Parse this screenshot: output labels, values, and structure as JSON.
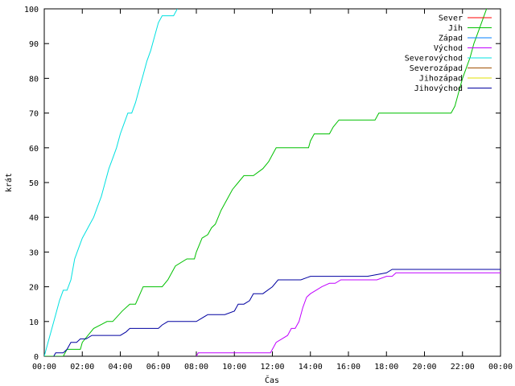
{
  "chart_data": {
    "type": "line",
    "title": "",
    "xlabel": "Čas",
    "ylabel": "krát",
    "xlim": [
      0,
      24
    ],
    "ylim": [
      0,
      100
    ],
    "x_ticks": [
      {
        "value": 0,
        "label": "00:00"
      },
      {
        "value": 2,
        "label": "02:00"
      },
      {
        "value": 4,
        "label": "04:00"
      },
      {
        "value": 6,
        "label": "06:00"
      },
      {
        "value": 8,
        "label": "08:00"
      },
      {
        "value": 10,
        "label": "10:00"
      },
      {
        "value": 12,
        "label": "12:00"
      },
      {
        "value": 14,
        "label": "14:00"
      },
      {
        "value": 16,
        "label": "16:00"
      },
      {
        "value": 18,
        "label": "18:00"
      },
      {
        "value": 20,
        "label": "20:00"
      },
      {
        "value": 22,
        "label": "22:00"
      },
      {
        "value": 24,
        "label": "00:00"
      }
    ],
    "y_ticks": [
      0,
      10,
      20,
      30,
      40,
      50,
      60,
      70,
      80,
      90,
      100
    ],
    "legend_position": "top-right",
    "grid": false,
    "series": [
      {
        "name": "Sever",
        "color": "#ff0000",
        "x": [],
        "y": []
      },
      {
        "name": "Jih",
        "color": "#00c000",
        "x": [
          0,
          1.0,
          1.2,
          1.9,
          2.0,
          2.3,
          2.6,
          3.3,
          3.6,
          4.1,
          4.5,
          4.8,
          5.2,
          5.8,
          6.2,
          6.5,
          6.9,
          7.5,
          7.6,
          7.9,
          8.0,
          8.3,
          8.6,
          8.8,
          9.0,
          9.3,
          9.6,
          9.9,
          10.2,
          10.5,
          10.8,
          11.0,
          11.5,
          11.8,
          12.0,
          12.2,
          13.0,
          13.9,
          14.0,
          14.2,
          14.5,
          15.0,
          15.2,
          15.5,
          15.8,
          16.5,
          17.0,
          17.4,
          17.6,
          18.0,
          19.0,
          20.0,
          20.5,
          21.0,
          21.4,
          21.6,
          21.8,
          22.0,
          22.2,
          22.4,
          22.6,
          22.8,
          23.0,
          23.2,
          23.4
        ],
        "y": [
          0,
          0,
          2,
          2,
          4,
          6,
          8,
          10,
          10,
          13,
          15,
          15,
          20,
          20,
          20,
          22,
          26,
          28,
          28,
          28,
          30,
          34,
          35,
          37,
          38,
          42,
          45,
          48,
          50,
          52,
          52,
          52,
          54,
          56,
          58,
          60,
          60,
          60,
          62,
          64,
          64,
          64,
          66,
          68,
          68,
          68,
          68,
          68,
          70,
          70,
          70,
          70,
          70,
          70,
          70,
          72,
          76,
          80,
          83,
          86,
          90,
          93,
          96,
          99,
          102
        ]
      },
      {
        "name": "Západ",
        "color": "#0080ff",
        "x": [],
        "y": []
      },
      {
        "name": "Východ",
        "color": "#c000ff",
        "x": [
          8.0,
          8.1,
          9.0,
          10.0,
          11.0,
          11.9,
          12.0,
          12.2,
          12.5,
          12.8,
          13.0,
          13.2,
          13.4,
          13.6,
          13.8,
          14.0,
          14.3,
          14.6,
          15.0,
          15.3,
          15.6,
          16.0,
          16.5,
          17.0,
          17.5,
          18.0,
          18.3,
          18.5,
          19.0,
          20.0,
          21.0,
          22.0,
          23.0,
          24.0
        ],
        "y": [
          0,
          1,
          1,
          1,
          1,
          1,
          2,
          4,
          5,
          6,
          8,
          8,
          10,
          14,
          17,
          18,
          19,
          20,
          21,
          21,
          22,
          22,
          22,
          22,
          22,
          23,
          23,
          24,
          24,
          24,
          24,
          24,
          24,
          24
        ]
      },
      {
        "name": "Severovýchod",
        "color": "#00e0e0",
        "x": [
          0,
          0.2,
          0.4,
          0.6,
          0.8,
          1.0,
          1.2,
          1.4,
          1.6,
          1.8,
          2.0,
          2.2,
          2.4,
          2.6,
          2.8,
          3.0,
          3.2,
          3.4,
          3.6,
          3.8,
          4.0,
          4.2,
          4.4,
          4.6,
          4.8,
          5.0,
          5.2,
          5.4,
          5.6,
          5.8,
          6.0,
          6.2,
          6.4,
          6.6,
          6.8,
          7.0
        ],
        "y": [
          0,
          4,
          8,
          12,
          16,
          19,
          19,
          22,
          28,
          31,
          34,
          36,
          38,
          40,
          43,
          46,
          50,
          54,
          57,
          60,
          64,
          67,
          70,
          70,
          73,
          77,
          81,
          85,
          88,
          92,
          96,
          98,
          98,
          98,
          98,
          100
        ]
      },
      {
        "name": "Severozápad",
        "color": "#a05000",
        "x": [],
        "y": []
      },
      {
        "name": "Jihozápad",
        "color": "#e0e000",
        "x": [],
        "y": []
      },
      {
        "name": "Jihovýchod",
        "color": "#0000a0",
        "x": [
          0.5,
          0.6,
          1.0,
          1.2,
          1.4,
          1.7,
          1.9,
          2.0,
          2.2,
          2.5,
          3.0,
          3.5,
          4.0,
          4.3,
          4.5,
          5.0,
          5.5,
          6.0,
          6.2,
          6.5,
          7.0,
          8.0,
          8.6,
          9.0,
          9.5,
          10.0,
          10.2,
          10.5,
          10.8,
          11.0,
          11.5,
          12.0,
          12.3,
          13.0,
          13.5,
          14.0,
          15.0,
          16.0,
          17.0,
          18.0,
          18.3,
          19.0,
          20.0,
          22.0,
          24.0
        ],
        "y": [
          0,
          1,
          1,
          2,
          4,
          4,
          5,
          5,
          5,
          6,
          6,
          6,
          6,
          7,
          8,
          8,
          8,
          8,
          9,
          10,
          10,
          10,
          12,
          12,
          12,
          13,
          15,
          15,
          16,
          18,
          18,
          20,
          22,
          22,
          22,
          23,
          23,
          23,
          23,
          24,
          25,
          25,
          25,
          25,
          25
        ]
      }
    ]
  }
}
